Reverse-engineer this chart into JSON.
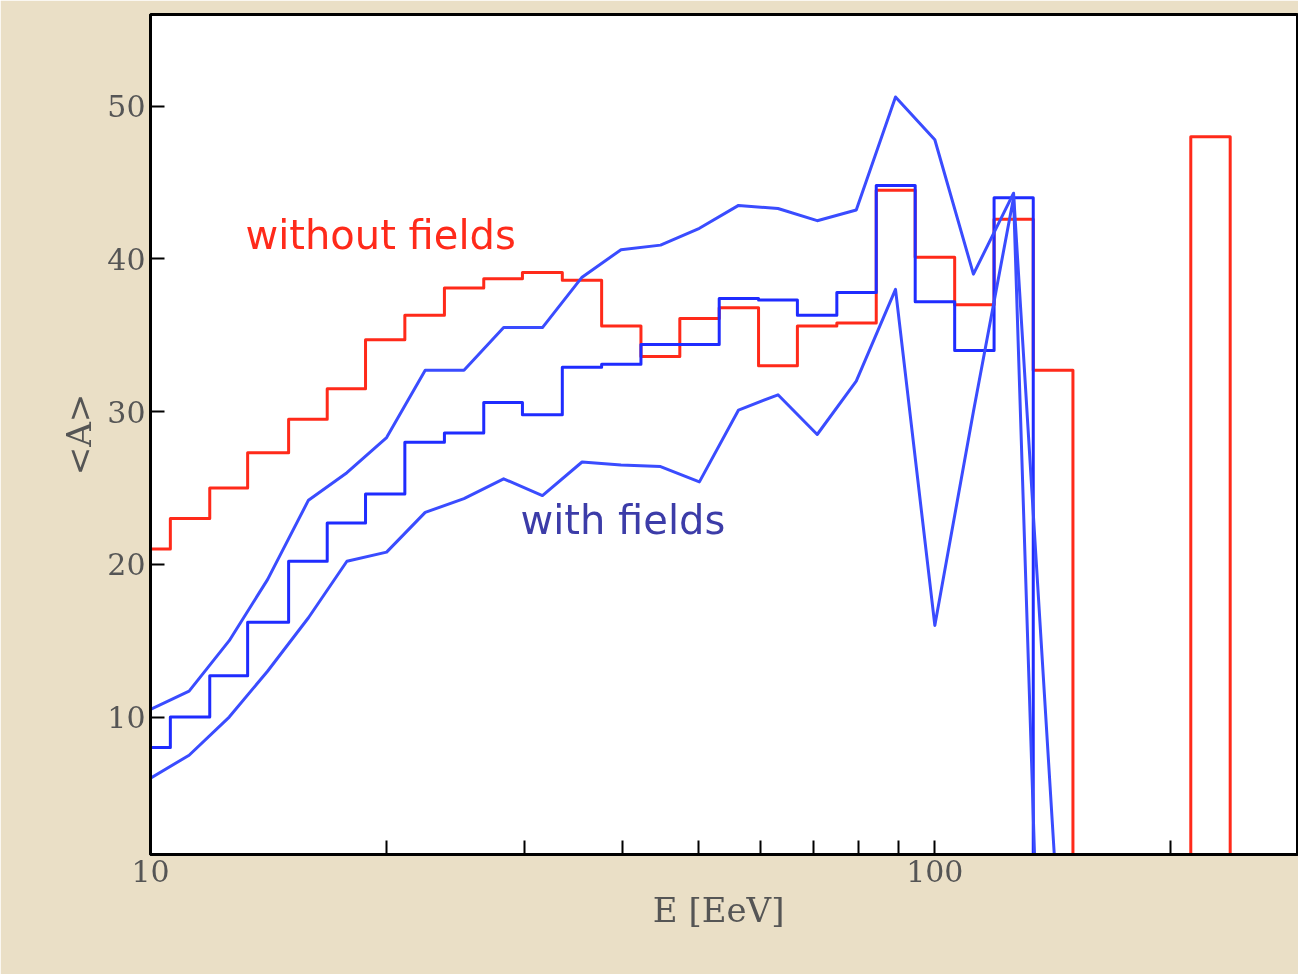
{
  "chart_data": {
    "type": "step",
    "xlabel": "E  [EeV]",
    "ylabel": "<A>",
    "log": "x",
    "xlim": [
      10,
      290
    ],
    "ylim": [
      1,
      56
    ],
    "xticks": [
      10,
      {
        "value": 20,
        "label": null
      },
      {
        "value": 30,
        "label": null
      },
      {
        "value": 40,
        "label": null
      },
      {
        "value": 50,
        "label": null
      },
      {
        "value": 60,
        "label": null
      },
      {
        "value": 70,
        "label": null
      },
      {
        "value": 80,
        "label": null
      },
      {
        "value": 90,
        "label": null
      },
      100,
      {
        "value": 200,
        "label": null
      }
    ],
    "yticks": [
      10,
      20,
      30,
      40,
      50
    ],
    "grid": false,
    "series": [
      {
        "color": "#ff2a1a",
        "x": [
          10,
          10.6,
          11.9,
          13.3,
          15.0,
          16.8,
          18.8,
          21.1,
          23.7,
          26.6,
          29.8,
          33.5,
          37.6,
          42.2,
          47.3,
          53.1,
          59.6,
          66.8,
          75.0,
          84.2,
          94.4,
          106,
          119,
          133.5,
          150,
          212,
          238
        ],
        "values": [
          21,
          23,
          25,
          27.3,
          29.5,
          31.5,
          34.7,
          36.3,
          38.1,
          38.7,
          39.1,
          38.6,
          35.6,
          33.6,
          36.1,
          36.8,
          33.0,
          35.6,
          35.8,
          44.5,
          40.1,
          37.0,
          42.6,
          32.7,
          1,
          48,
          1
        ]
      },
      {
        "color": "#1f2cff",
        "x": [
          10,
          10.6,
          11.9,
          13.3,
          15.0,
          16.8,
          18.8,
          21.1,
          23.7,
          26.6,
          29.8,
          33.5,
          37.6,
          42.2,
          47.3,
          53.1,
          59.6,
          66.8,
          75.0,
          84.2,
          94.4,
          106,
          119,
          133.5
        ],
        "values": [
          8,
          10,
          12.7,
          16.2,
          20.2,
          22.7,
          24.6,
          28.0,
          28.6,
          30.6,
          29.8,
          32.9,
          33.1,
          34.4,
          34.4,
          37.4,
          37.3,
          36.3,
          37.8,
          44.8,
          37.2,
          34.0,
          44.0,
          1
        ]
      },
      {
        "type": "line",
        "color": "#3a4cff",
        "x": [
          10,
          11.2,
          12.6,
          14.1,
          15.9,
          17.8,
          20,
          22.4,
          25.1,
          28.2,
          31.6,
          35.5,
          39.8,
          44.7,
          50.1,
          56.2,
          63.1,
          70.8,
          79.4,
          89.1,
          100,
          112,
          126,
          142
        ],
        "values": [
          10.5,
          11.7,
          15,
          19,
          24.2,
          26,
          28.3,
          32.7,
          32.7,
          35.5,
          35.5,
          38.8,
          40.6,
          40.9,
          42,
          43.5,
          43.3,
          42.5,
          43.2,
          50.6,
          47.8,
          39,
          44.3,
          1
        ]
      },
      {
        "type": "line",
        "color": "#3a4cff",
        "x": [
          10,
          11.2,
          12.6,
          14.1,
          15.9,
          17.8,
          20,
          22.4,
          25.1,
          28.2,
          31.6,
          35.5,
          39.8,
          44.7,
          50.1,
          56.2,
          63.1,
          70.8,
          79.4,
          89.1,
          100,
          112,
          126,
          134
        ],
        "values": [
          6,
          7.5,
          10,
          13,
          16.5,
          20.2,
          20.8,
          23.4,
          24.3,
          25.6,
          24.5,
          26.7,
          26.5,
          26.4,
          25.4,
          30.1,
          31.1,
          28.5,
          32,
          38,
          16,
          30,
          44,
          1
        ]
      }
    ],
    "annotations": [
      "without fields",
      "with fields"
    ]
  }
}
